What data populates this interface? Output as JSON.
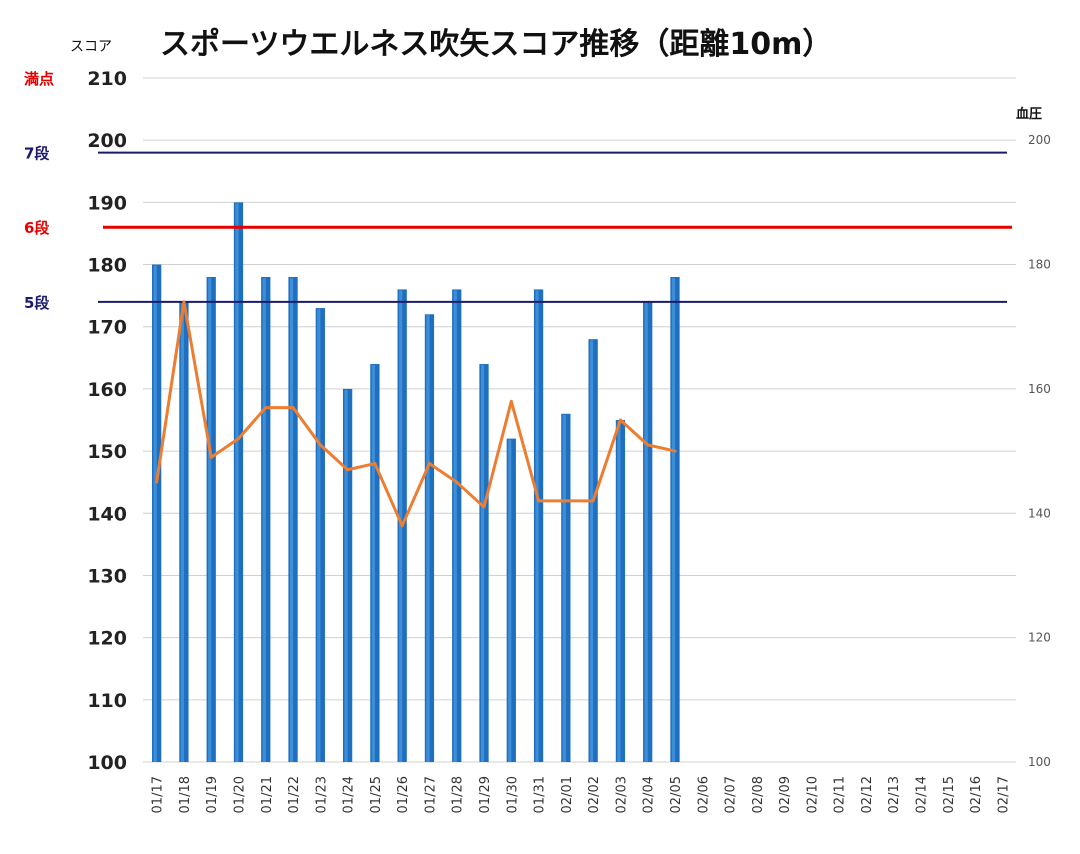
{
  "chart_data": {
    "type": "bar+line",
    "title": "スポーツウエルネス吹矢スコア推移（距離10m）",
    "ylabel": "スコア",
    "y2label": "血圧",
    "ylim": [
      100,
      210
    ],
    "y2lim": [
      100,
      210
    ],
    "yticks": [
      "100",
      "110",
      "120",
      "130",
      "140",
      "150",
      "160",
      "170",
      "180",
      "190",
      "200",
      "210"
    ],
    "y2ticks": [
      "100",
      "120",
      "140",
      "160",
      "180",
      "200"
    ],
    "grid": true,
    "categories": [
      "01/17",
      "01/18",
      "01/19",
      "01/20",
      "01/21",
      "01/22",
      "01/23",
      "01/24",
      "01/25",
      "01/26",
      "01/27",
      "01/28",
      "01/29",
      "01/30",
      "01/31",
      "02/01",
      "02/02",
      "02/03",
      "02/04",
      "02/05",
      "02/06",
      "02/07",
      "02/08",
      "02/09",
      "02/10",
      "02/11",
      "02/12",
      "02/13",
      "02/14",
      "02/15",
      "02/16",
      "02/17"
    ],
    "series": [
      {
        "type": "bar",
        "axis": "left",
        "values": [
          180,
          174,
          178,
          190,
          178,
          178,
          173,
          160,
          164,
          176,
          172,
          176,
          164,
          152,
          176,
          156,
          168,
          155,
          174,
          178,
          null,
          null,
          null,
          null,
          null,
          null,
          null,
          null,
          null,
          null,
          null,
          null
        ]
      },
      {
        "type": "line",
        "axis": "right",
        "values": [
          145,
          174,
          149,
          152,
          157,
          157,
          151,
          147,
          148,
          138,
          148,
          145,
          141,
          158,
          142,
          142,
          142,
          155,
          151,
          150,
          null,
          null,
          null,
          null,
          null,
          null,
          null,
          null,
          null,
          null,
          null,
          null
        ]
      }
    ],
    "reference_lines": [
      {
        "label": "満点",
        "value": 210,
        "color": "#e60000"
      },
      {
        "label": "7段",
        "value": 198,
        "color": "#1a1a6e"
      },
      {
        "label": "6段",
        "value": 186,
        "color": "#e60000"
      },
      {
        "label": "5段",
        "value": 174,
        "color": "#1a1a6e"
      }
    ],
    "colors": {
      "bar": "#1f6fc0",
      "bar_highlight": "#4a9be0",
      "line": "#ed7d31",
      "grid": "#d0d0d0"
    }
  }
}
